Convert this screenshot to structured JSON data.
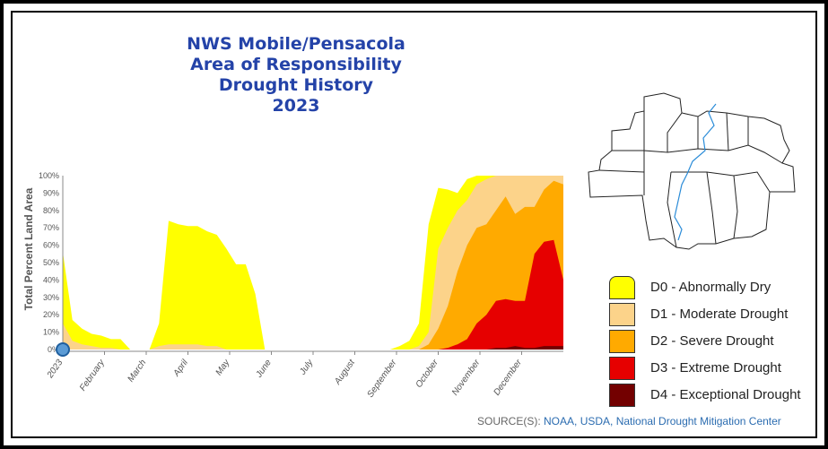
{
  "title": {
    "line1": "NWS Mobile/Pensacola",
    "line2": "Area of Responsibility",
    "line3": "Drought History",
    "line4": "2023"
  },
  "source": {
    "label": "SOURCE(S):",
    "links": "NOAA, USDA, National Drought Mitigation Center"
  },
  "legend": [
    {
      "label": "D0 - Abnormally Dry",
      "color": "#ffff00"
    },
    {
      "label": "D1 - Moderate Drought",
      "color": "#fcd38a"
    },
    {
      "label": "D2 - Severe Drought",
      "color": "#ffaa00"
    },
    {
      "label": "D3 - Extreme Drought",
      "color": "#e60000"
    },
    {
      "label": "D4 - Exceptional Drought",
      "color": "#730000"
    }
  ],
  "chart_data": {
    "type": "area",
    "ylabel": "Total Percent Land Area",
    "ylim": [
      0,
      100
    ],
    "yticks": [
      "0%",
      "10%",
      "20%",
      "30%",
      "40%",
      "50%",
      "60%",
      "70%",
      "80%",
      "90%",
      "100%"
    ],
    "x_tick_labels": [
      "2023",
      "February",
      "March",
      "April",
      "May",
      "June",
      "July",
      "August",
      "September",
      "October",
      "November",
      "December"
    ],
    "x_weeks": [
      1,
      2,
      3,
      4,
      5,
      6,
      7,
      8,
      9,
      10,
      11,
      12,
      13,
      14,
      15,
      16,
      17,
      18,
      19,
      20,
      21,
      22,
      23,
      24,
      25,
      26,
      27,
      28,
      29,
      30,
      31,
      32,
      33,
      34,
      35,
      36,
      37,
      38,
      39,
      40,
      41,
      42,
      43,
      44,
      45,
      46,
      47,
      48,
      49,
      50,
      51,
      52,
      53
    ],
    "series": [
      {
        "name": "D0 - Abnormally Dry",
        "values": [
          56,
          17,
          12,
          9,
          8,
          6,
          6,
          0,
          0,
          0,
          15,
          74,
          72,
          71,
          71,
          68,
          66,
          58,
          49,
          49,
          32,
          0,
          0,
          0,
          0,
          0,
          0,
          0,
          0,
          0,
          0,
          0,
          0,
          0,
          0,
          2,
          5,
          15,
          72,
          93,
          92,
          90,
          98,
          100,
          100,
          100,
          100,
          100,
          100,
          100,
          100,
          100,
          100
        ]
      },
      {
        "name": "D1 - Moderate Drought",
        "values": [
          15,
          5,
          3,
          2,
          1,
          1,
          0,
          0,
          0,
          0,
          2,
          3,
          3,
          3,
          3,
          2,
          2,
          0,
          0,
          0,
          0,
          0,
          0,
          0,
          0,
          0,
          0,
          0,
          0,
          0,
          0,
          0,
          0,
          0,
          0,
          0,
          0,
          2,
          10,
          58,
          70,
          80,
          86,
          95,
          98,
          100,
          100,
          100,
          100,
          100,
          100,
          100,
          100
        ]
      },
      {
        "name": "D2 - Severe Drought",
        "values": [
          0,
          0,
          0,
          0,
          0,
          0,
          0,
          0,
          0,
          0,
          0,
          0,
          0,
          0,
          0,
          0,
          0,
          0,
          0,
          0,
          0,
          0,
          0,
          0,
          0,
          0,
          0,
          0,
          0,
          0,
          0,
          0,
          0,
          0,
          0,
          0,
          0,
          0,
          3,
          12,
          25,
          45,
          60,
          70,
          72,
          80,
          88,
          78,
          82,
          82,
          92,
          97,
          95
        ]
      },
      {
        "name": "D3 - Extreme Drought",
        "values": [
          0,
          0,
          0,
          0,
          0,
          0,
          0,
          0,
          0,
          0,
          0,
          0,
          0,
          0,
          0,
          0,
          0,
          0,
          0,
          0,
          0,
          0,
          0,
          0,
          0,
          0,
          0,
          0,
          0,
          0,
          0,
          0,
          0,
          0,
          0,
          0,
          0,
          0,
          0,
          0,
          1,
          3,
          6,
          15,
          20,
          28,
          29,
          28,
          28,
          55,
          62,
          63,
          40
        ]
      },
      {
        "name": "D4 - Exceptional Drought",
        "values": [
          0,
          0,
          0,
          0,
          0,
          0,
          0,
          0,
          0,
          0,
          0,
          0,
          0,
          0,
          0,
          0,
          0,
          0,
          0,
          0,
          0,
          0,
          0,
          0,
          0,
          0,
          0,
          0,
          0,
          0,
          0,
          0,
          0,
          0,
          0,
          0,
          0,
          0,
          0,
          0,
          0,
          0,
          0,
          0,
          0,
          1,
          1,
          2,
          1,
          1,
          2,
          2,
          2
        ]
      }
    ]
  }
}
